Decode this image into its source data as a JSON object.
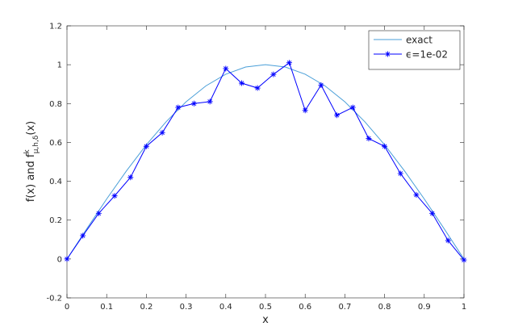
{
  "chart_data": {
    "type": "line",
    "xlabel": "x",
    "ylabel": {
      "text": "f(x) and f",
      "sup": "k",
      "sub": "μ,h,δ",
      "tail": "(x)"
    },
    "xlim": [
      0,
      1
    ],
    "ylim": [
      -0.2,
      1.2
    ],
    "xticks": [
      0,
      0.1,
      0.2,
      0.3,
      0.4,
      0.5,
      0.6,
      0.7,
      0.8,
      0.9,
      1
    ],
    "yticks": [
      -0.2,
      0,
      0.2,
      0.4,
      0.6,
      0.8,
      1,
      1.2
    ],
    "grid": false,
    "legend": "northeast",
    "series": [
      {
        "name": "exact",
        "color": "#4a9fd8",
        "marker": "none",
        "x": [
          0,
          0.05,
          0.1,
          0.15,
          0.2,
          0.25,
          0.3,
          0.35,
          0.4,
          0.45,
          0.5,
          0.55,
          0.6,
          0.65,
          0.7,
          0.75,
          0.8,
          0.85,
          0.9,
          0.95,
          1
        ],
        "values": [
          0,
          0.156,
          0.309,
          0.454,
          0.588,
          0.707,
          0.809,
          0.891,
          0.951,
          0.988,
          1,
          0.988,
          0.951,
          0.891,
          0.809,
          0.707,
          0.588,
          0.454,
          0.309,
          0.156,
          0
        ]
      },
      {
        "name": "ϵ=1e-02",
        "color": "#0000ff",
        "marker": "asterisk",
        "x": [
          0,
          0.04,
          0.08,
          0.12,
          0.16,
          0.2,
          0.24,
          0.28,
          0.32,
          0.36,
          0.4,
          0.44,
          0.48,
          0.52,
          0.56,
          0.6,
          0.64,
          0.68,
          0.72,
          0.76,
          0.8,
          0.84,
          0.88,
          0.92,
          0.96,
          1
        ],
        "values": [
          0,
          0.12,
          0.235,
          0.325,
          0.42,
          0.58,
          0.65,
          0.78,
          0.8,
          0.81,
          0.98,
          0.905,
          0.88,
          0.95,
          1.01,
          0.765,
          0.895,
          0.74,
          0.78,
          0.62,
          0.58,
          0.44,
          0.33,
          0.235,
          0.095,
          -0.005
        ]
      }
    ]
  }
}
